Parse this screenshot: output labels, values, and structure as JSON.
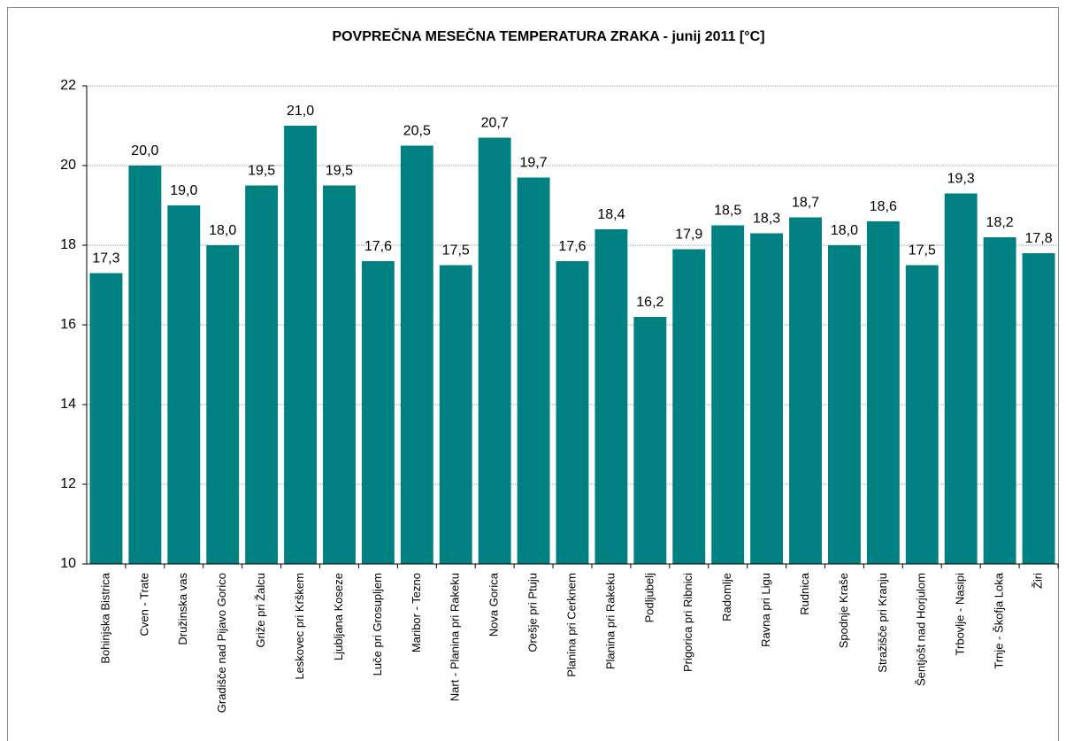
{
  "chart_data": {
    "type": "bar",
    "title": "POVPREČNA MESEČNA TEMPERATURA ZRAKA - junij 2011 [°C]",
    "categories": [
      "Bohinjska Bistrica",
      "Cven - Trate",
      "Družinska vas",
      "Gradišče nad Pijavo Gorico",
      "Griže pri Žalcu",
      "Leskovec pri Krškem",
      "Ljubljana Koseze",
      "Luče pri Grosupljem",
      "Maribor - Tezno",
      "Nart - Planina pri Rakeku",
      "Nova Gorica",
      "Orešje pri Ptuju",
      "Planina pri Cerknem",
      "Planina pri Rakeku",
      "Podljubelj",
      "Prigorica pri Ribnici",
      "Radomlje",
      "Ravna pri Ligu",
      "Rudnica",
      "Spodnje Kraše",
      "Stražišče pri Kranju",
      "Šentjošt nad Horjulom",
      "Trbovlje - Nasipi",
      "Trnje - Škofja Loka",
      "Žiri"
    ],
    "values": [
      17.3,
      20.0,
      19.0,
      18.0,
      19.5,
      21.0,
      19.5,
      17.6,
      20.5,
      17.5,
      20.7,
      19.7,
      17.6,
      18.4,
      16.2,
      17.9,
      18.5,
      18.3,
      18.7,
      18.0,
      18.6,
      17.5,
      19.3,
      18.2,
      17.8
    ],
    "value_labels": [
      "17,3",
      "20,0",
      "19,0",
      "18,0",
      "19,5",
      "21,0",
      "19,5",
      "17,6",
      "20,5",
      "17,5",
      "20,7",
      "19,7",
      "17,6",
      "18,4",
      "16,2",
      "17,9",
      "18,5",
      "18,3",
      "18,7",
      "18,0",
      "18,6",
      "17,5",
      "19,3",
      "18,2",
      "17,8"
    ],
    "color": "#008080",
    "ylim": [
      10,
      22
    ],
    "yticks": [
      10,
      12,
      14,
      16,
      18,
      20,
      22
    ],
    "grid": true
  }
}
